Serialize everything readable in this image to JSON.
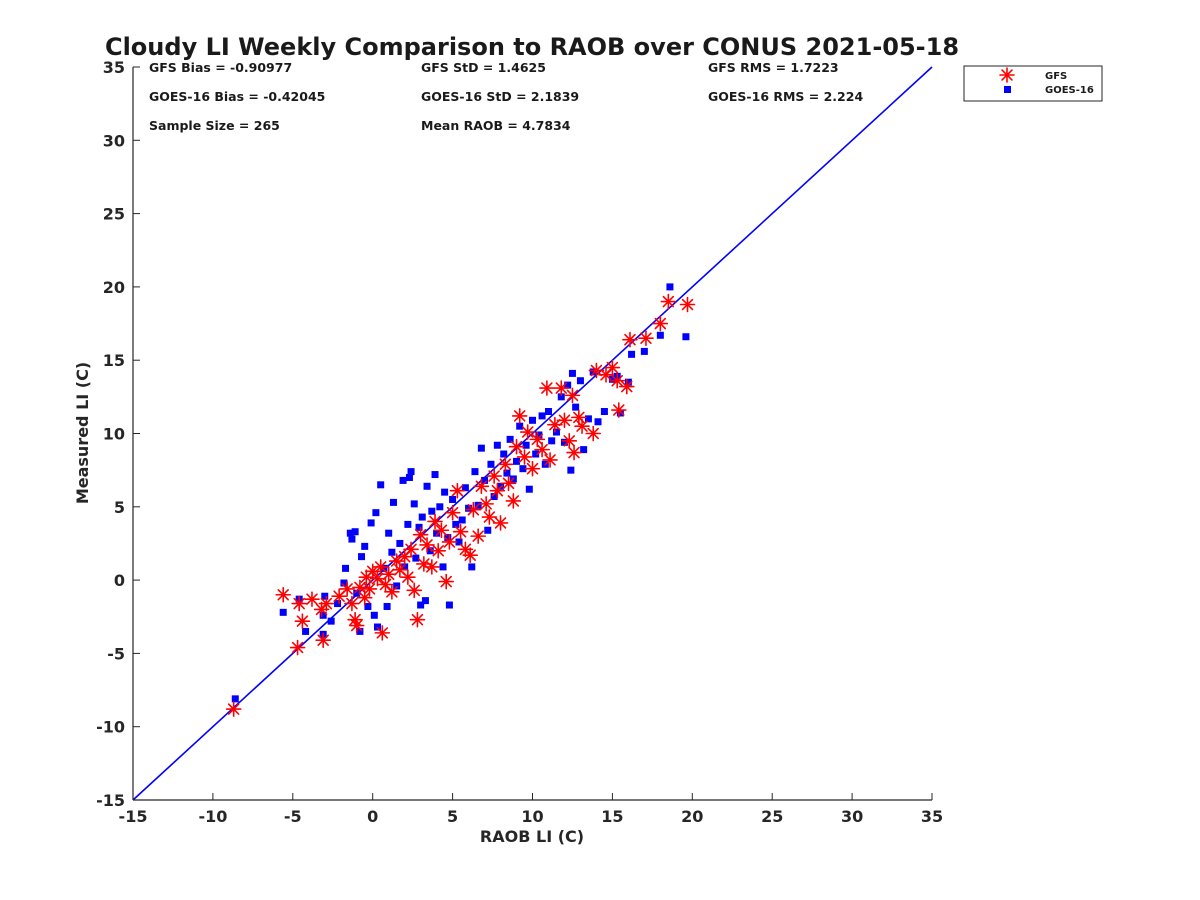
{
  "chart_data": {
    "type": "scatter",
    "title": "Cloudy LI Weekly Comparison to RAOB over CONUS 2021-05-18",
    "xlabel": "RAOB LI (C)",
    "ylabel": "Measured LI (C)",
    "xlim": [
      -15,
      35
    ],
    "ylim": [
      -15,
      35
    ],
    "xticks": [
      "-15",
      "-10",
      "-5",
      "0",
      "5",
      "10",
      "15",
      "20",
      "25",
      "30",
      "35"
    ],
    "yticks": [
      "-15",
      "-10",
      "-5",
      "0",
      "5",
      "10",
      "15",
      "20",
      "25",
      "30",
      "35"
    ],
    "grid": false,
    "legend_position": "outside top-right",
    "reference_line": {
      "from": [
        -15,
        -15
      ],
      "to": [
        35,
        35
      ],
      "color": "#0000ff"
    },
    "stats": [
      [
        "GFS Bias = -0.90977",
        "GFS StD = 1.4625",
        "GFS RMS = 1.7223"
      ],
      [
        "GOES-16 Bias = -0.42045",
        "GOES-16 StD = 2.1839",
        "GOES-16 RMS = 2.224"
      ],
      [
        "Sample Size = 265",
        "Mean RAOB = 4.7834",
        ""
      ]
    ],
    "series": [
      {
        "name": "GFS",
        "marker": "asterisk",
        "color": "#ff0000",
        "points": [
          [
            -8.7,
            -8.8
          ],
          [
            -5.6,
            -1.0
          ],
          [
            -4.7,
            -4.6
          ],
          [
            -4.6,
            -1.6
          ],
          [
            -4.4,
            -2.8
          ],
          [
            -3.1,
            -4.1
          ],
          [
            -3.2,
            -2.0
          ],
          [
            -2.9,
            -1.6
          ],
          [
            -3.8,
            -1.3
          ],
          [
            -2.1,
            -1.1
          ],
          [
            -1.6,
            -0.6
          ],
          [
            -1.3,
            -1.6
          ],
          [
            -1.1,
            -2.7
          ],
          [
            -1.0,
            -3.1
          ],
          [
            -0.8,
            -0.5
          ],
          [
            -0.5,
            -1.2
          ],
          [
            -0.4,
            0.2
          ],
          [
            -0.2,
            -0.6
          ],
          [
            0.0,
            0.6
          ],
          [
            0.3,
            0.1
          ],
          [
            0.5,
            0.9
          ],
          [
            0.6,
            -3.6
          ],
          [
            0.8,
            -0.3
          ],
          [
            1.0,
            0.4
          ],
          [
            1.2,
            -0.8
          ],
          [
            1.5,
            1.3
          ],
          [
            1.7,
            0.7
          ],
          [
            2.0,
            1.6
          ],
          [
            2.2,
            0.2
          ],
          [
            2.4,
            2.1
          ],
          [
            2.6,
            -0.7
          ],
          [
            2.8,
            -2.7
          ],
          [
            3.0,
            3.1
          ],
          [
            3.2,
            1.1
          ],
          [
            3.4,
            2.4
          ],
          [
            3.7,
            0.9
          ],
          [
            3.9,
            4.0
          ],
          [
            4.1,
            2.0
          ],
          [
            4.3,
            3.4
          ],
          [
            4.6,
            -0.1
          ],
          [
            4.8,
            2.6
          ],
          [
            5.0,
            4.6
          ],
          [
            5.3,
            6.1
          ],
          [
            5.5,
            3.3
          ],
          [
            5.8,
            2.1
          ],
          [
            6.1,
            1.7
          ],
          [
            6.3,
            4.8
          ],
          [
            6.6,
            3.0
          ],
          [
            6.8,
            6.4
          ],
          [
            7.1,
            5.2
          ],
          [
            7.3,
            4.3
          ],
          [
            7.6,
            7.1
          ],
          [
            7.8,
            6.1
          ],
          [
            8.0,
            3.9
          ],
          [
            8.3,
            7.9
          ],
          [
            8.5,
            6.6
          ],
          [
            8.8,
            5.4
          ],
          [
            9.0,
            9.1
          ],
          [
            9.2,
            11.2
          ],
          [
            9.5,
            8.4
          ],
          [
            9.7,
            10.1
          ],
          [
            10.0,
            7.6
          ],
          [
            10.3,
            9.6
          ],
          [
            10.6,
            8.9
          ],
          [
            10.9,
            13.1
          ],
          [
            11.1,
            8.2
          ],
          [
            11.4,
            10.6
          ],
          [
            11.8,
            13.1
          ],
          [
            12.0,
            10.9
          ],
          [
            12.3,
            9.5
          ],
          [
            12.5,
            12.6
          ],
          [
            12.6,
            8.7
          ],
          [
            12.9,
            11.1
          ],
          [
            13.1,
            10.5
          ],
          [
            13.8,
            10.0
          ],
          [
            14.0,
            14.3
          ],
          [
            14.6,
            14.0
          ],
          [
            15.0,
            14.5
          ],
          [
            15.3,
            13.6
          ],
          [
            15.4,
            11.6
          ],
          [
            15.9,
            13.2
          ],
          [
            16.1,
            16.4
          ],
          [
            17.1,
            16.5
          ],
          [
            18.0,
            17.5
          ],
          [
            18.5,
            19.0
          ],
          [
            19.7,
            18.8
          ]
        ]
      },
      {
        "name": "GOES-16",
        "marker": "square",
        "color": "#0000ff",
        "points": [
          [
            -8.6,
            -8.1
          ],
          [
            -5.6,
            -2.2
          ],
          [
            -4.6,
            -1.3
          ],
          [
            -4.2,
            -3.5
          ],
          [
            -3.1,
            -3.7
          ],
          [
            -3.1,
            -2.4
          ],
          [
            -3.0,
            -1.1
          ],
          [
            -2.6,
            -2.8
          ],
          [
            -2.2,
            -1.6
          ],
          [
            -1.8,
            -0.2
          ],
          [
            -1.7,
            0.8
          ],
          [
            -1.4,
            3.2
          ],
          [
            -1.3,
            2.8
          ],
          [
            -1.1,
            3.3
          ],
          [
            -1.0,
            -0.9
          ],
          [
            -0.8,
            -3.5
          ],
          [
            -0.7,
            1.6
          ],
          [
            -0.5,
            2.3
          ],
          [
            -0.3,
            -1.8
          ],
          [
            -0.1,
            3.9
          ],
          [
            0.1,
            -2.4
          ],
          [
            0.2,
            4.6
          ],
          [
            0.3,
            -3.2
          ],
          [
            0.5,
            6.5
          ],
          [
            0.7,
            0.8
          ],
          [
            0.9,
            -1.8
          ],
          [
            1.0,
            3.2
          ],
          [
            1.2,
            1.9
          ],
          [
            1.3,
            5.3
          ],
          [
            1.5,
            -0.4
          ],
          [
            1.7,
            2.5
          ],
          [
            1.9,
            6.8
          ],
          [
            2.0,
            0.9
          ],
          [
            2.2,
            3.8
          ],
          [
            2.3,
            7.0
          ],
          [
            2.4,
            7.4
          ],
          [
            2.6,
            5.2
          ],
          [
            2.7,
            1.5
          ],
          [
            2.9,
            3.6
          ],
          [
            3.0,
            -1.7
          ],
          [
            3.1,
            4.3
          ],
          [
            3.3,
            -1.4
          ],
          [
            3.4,
            6.4
          ],
          [
            3.6,
            2.0
          ],
          [
            3.7,
            4.7
          ],
          [
            3.9,
            7.2
          ],
          [
            4.0,
            3.2
          ],
          [
            4.2,
            5.0
          ],
          [
            4.4,
            0.9
          ],
          [
            4.5,
            6.0
          ],
          [
            4.7,
            2.9
          ],
          [
            4.8,
            -1.7
          ],
          [
            5.0,
            5.5
          ],
          [
            5.2,
            3.8
          ],
          [
            5.4,
            2.6
          ],
          [
            5.6,
            4.1
          ],
          [
            5.8,
            6.3
          ],
          [
            6.0,
            4.9
          ],
          [
            6.2,
            0.9
          ],
          [
            6.4,
            7.4
          ],
          [
            6.6,
            5.1
          ],
          [
            6.8,
            9.0
          ],
          [
            7.0,
            6.8
          ],
          [
            7.2,
            3.4
          ],
          [
            7.4,
            7.9
          ],
          [
            7.6,
            5.7
          ],
          [
            7.8,
            9.2
          ],
          [
            8.0,
            6.4
          ],
          [
            8.2,
            8.6
          ],
          [
            8.4,
            7.3
          ],
          [
            8.6,
            9.6
          ],
          [
            8.8,
            6.9
          ],
          [
            9.0,
            8.1
          ],
          [
            9.2,
            10.5
          ],
          [
            9.4,
            7.6
          ],
          [
            9.6,
            9.2
          ],
          [
            9.8,
            6.2
          ],
          [
            10.0,
            10.9
          ],
          [
            10.2,
            8.6
          ],
          [
            10.4,
            9.9
          ],
          [
            10.6,
            11.2
          ],
          [
            10.8,
            7.9
          ],
          [
            11.0,
            11.5
          ],
          [
            11.2,
            9.5
          ],
          [
            11.5,
            10.1
          ],
          [
            11.8,
            12.5
          ],
          [
            12.0,
            9.4
          ],
          [
            12.2,
            13.3
          ],
          [
            12.4,
            7.5
          ],
          [
            12.5,
            14.1
          ],
          [
            12.7,
            11.8
          ],
          [
            13.0,
            13.6
          ],
          [
            13.2,
            8.9
          ],
          [
            13.5,
            11.0
          ],
          [
            13.8,
            14.2
          ],
          [
            14.1,
            10.8
          ],
          [
            14.5,
            11.5
          ],
          [
            15.0,
            13.7
          ],
          [
            15.3,
            13.9
          ],
          [
            15.5,
            11.4
          ],
          [
            16.0,
            13.5
          ],
          [
            16.2,
            15.4
          ],
          [
            17.0,
            15.6
          ],
          [
            18.0,
            16.7
          ],
          [
            18.6,
            20.0
          ],
          [
            19.6,
            16.6
          ]
        ]
      }
    ]
  }
}
